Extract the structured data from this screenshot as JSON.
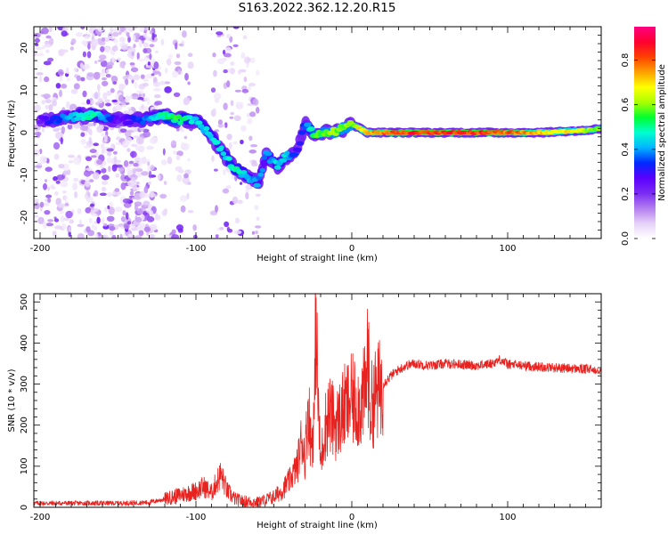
{
  "title": "S163.2022.362.12.20.R15",
  "colors": {
    "snr_line": "#e8221f",
    "colormap": [
      "#ffffff",
      "#e6d2f8",
      "#b37cf0",
      "#7a2cf2",
      "#5a00ff",
      "#0028ff",
      "#00b4ff",
      "#00ffd0",
      "#00ff30",
      "#aaff00",
      "#ffff00",
      "#ffa000",
      "#ff4000",
      "#ff0030",
      "#ff0080"
    ]
  },
  "chart_data": [
    {
      "type": "heatmap",
      "title": "",
      "xlabel": "Height of straight line (km)",
      "ylabel": "Frequency (Hz)",
      "xlim": [
        -204,
        160
      ],
      "ylim": [
        -25,
        25
      ],
      "xticks": [
        -200,
        -100,
        0,
        100
      ],
      "yticks": [
        -20,
        -10,
        0,
        10,
        20
      ],
      "colorbar": {
        "label": "Normalized spectral amplitude",
        "range": [
          0,
          0.95
        ],
        "ticks": [
          "0.0",
          "0.2",
          "0.4",
          "0.6",
          "0.8"
        ]
      },
      "ridge": [
        {
          "x": -200,
          "freq": 3,
          "amp": 0.25
        },
        {
          "x": -190,
          "freq": 3,
          "amp": 0.35
        },
        {
          "x": -175,
          "freq": 4,
          "amp": 0.45
        },
        {
          "x": -165,
          "freq": 4,
          "amp": 0.5
        },
        {
          "x": -150,
          "freq": 3,
          "amp": 0.25
        },
        {
          "x": -135,
          "freq": 3,
          "amp": 0.35
        },
        {
          "x": -122,
          "freq": 4,
          "amp": 0.5
        },
        {
          "x": -112,
          "freq": 3,
          "amp": 0.55
        },
        {
          "x": -100,
          "freq": 3,
          "amp": 0.45
        },
        {
          "x": -92,
          "freq": 0,
          "amp": 0.45
        },
        {
          "x": -84,
          "freq": -4,
          "amp": 0.45
        },
        {
          "x": -76,
          "freq": -8,
          "amp": 0.5
        },
        {
          "x": -68,
          "freq": -10,
          "amp": 0.45
        },
        {
          "x": -60,
          "freq": -12,
          "amp": 0.4
        },
        {
          "x": -55,
          "freq": -5,
          "amp": 0.4
        },
        {
          "x": -48,
          "freq": -8,
          "amp": 0.45
        },
        {
          "x": -43,
          "freq": -6,
          "amp": 0.45
        },
        {
          "x": -35,
          "freq": -4,
          "amp": 0.3
        },
        {
          "x": -30,
          "freq": 2,
          "amp": 0.35
        },
        {
          "x": -25,
          "freq": 0,
          "amp": 0.55
        },
        {
          "x": -15,
          "freq": 0,
          "amp": 0.6
        },
        {
          "x": -5,
          "freq": 1,
          "amp": 0.6
        },
        {
          "x": 0,
          "freq": 2,
          "amp": 0.6
        },
        {
          "x": 10,
          "freq": 0,
          "amp": 0.75
        },
        {
          "x": 40,
          "freq": 0,
          "amp": 0.85
        },
        {
          "x": 80,
          "freq": 0,
          "amp": 0.85
        },
        {
          "x": 120,
          "freq": 0,
          "amp": 0.75
        },
        {
          "x": 150,
          "freq": 0.5,
          "amp": 0.65
        },
        {
          "x": 160,
          "freq": 1,
          "amp": 0.6
        }
      ]
    },
    {
      "type": "line",
      "title": "",
      "xlabel": "Height of straight line (km)",
      "ylabel": "SNR (10 * v/v)",
      "xlim": [
        -204,
        160
      ],
      "ylim": [
        0,
        520
      ],
      "xticks": [
        -200,
        -100,
        0,
        100
      ],
      "yticks": [
        0,
        100,
        200,
        300,
        400,
        500
      ],
      "x": [
        -204,
        -190,
        -170,
        -150,
        -130,
        -120,
        -110,
        -100,
        -95,
        -90,
        -87,
        -84,
        -80,
        -75,
        -70,
        -60,
        -50,
        -45,
        -40,
        -35,
        -32,
        -30,
        -28,
        -26,
        -24,
        -23,
        -22,
        -20,
        -18,
        -15,
        -10,
        -5,
        0,
        5,
        9,
        10,
        12,
        15,
        20,
        25,
        30,
        35,
        40,
        50,
        60,
        70,
        80,
        90,
        95,
        100,
        110,
        120,
        130,
        140,
        150,
        160
      ],
      "values": [
        10,
        10,
        10,
        10,
        12,
        20,
        30,
        40,
        50,
        35,
        60,
        80,
        40,
        20,
        15,
        12,
        25,
        40,
        65,
        100,
        170,
        120,
        250,
        150,
        220,
        510,
        300,
        100,
        180,
        230,
        200,
        240,
        260,
        250,
        280,
        380,
        240,
        270,
        300,
        320,
        335,
        345,
        350,
        345,
        350,
        348,
        345,
        350,
        360,
        348,
        345,
        342,
        340,
        338,
        336,
        335
      ]
    }
  ]
}
